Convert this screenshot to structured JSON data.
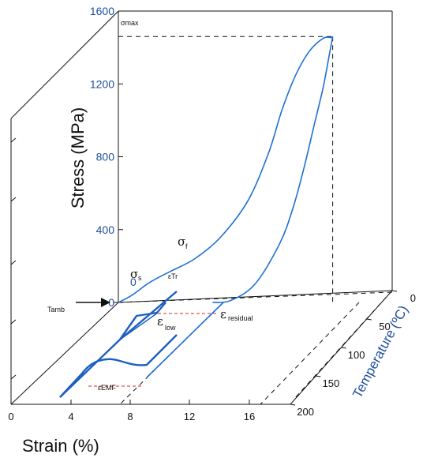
{
  "chart_data": {
    "type": "line",
    "title": "",
    "ylabel": "Stress (MPa)",
    "xlabel": "Strain (%)",
    "zlabel": "Temperature (ºC)",
    "y_ticks": [
      "0",
      "400",
      "800",
      "1200",
      "1600"
    ],
    "x_ticks": [
      "0",
      "4",
      "8",
      "12",
      "16"
    ],
    "z_ticks": [
      "0",
      "50",
      "100",
      "150",
      "200"
    ],
    "ylim": [
      0,
      1600
    ],
    "xlim": [
      0,
      18
    ],
    "zlim": [
      0,
      200
    ],
    "stress_strain_curve": {
      "strain": [
        0,
        1.0,
        2.3,
        3.8,
        5.6,
        7.5,
        9.5,
        11.0,
        12.0,
        13.0,
        14.0,
        15.0,
        15.6,
        15.7
      ],
      "stress": [
        0,
        40,
        110,
        170,
        240,
        360,
        560,
        820,
        1060,
        1250,
        1380,
        1450,
        1455,
        1460
      ]
    },
    "unloading_curve": {
      "strain": [
        15.7,
        15.5,
        15.0,
        14.3,
        13.6,
        12.8,
        11.8,
        10.0,
        8.2,
        6.9
      ],
      "stress": [
        1460,
        1380,
        1180,
        960,
        740,
        520,
        320,
        100,
        10,
        0
      ]
    },
    "recovery_path": {
      "strain": [
        6.9,
        3.3,
        1.3,
        0.4
      ],
      "temperature": [
        0,
        110,
        160,
        190
      ]
    },
    "thermal_path": {
      "strain": [
        0.4,
        1.0,
        2.0,
        3.0,
        3.8,
        5.0,
        6.2,
        6.8
      ],
      "temperature": [
        190,
        155,
        148,
        140,
        120,
        55,
        15,
        0
      ]
    },
    "labels": {
      "sigma_max": "σmax",
      "sigma_s": "σs",
      "sigma_f": "σf",
      "eps_tr": "εTr",
      "eps_low": "εlow",
      "eps_residual": "εresidual",
      "eps_emf": "εEMF",
      "t_amb": "Tamb"
    },
    "grid": false
  }
}
